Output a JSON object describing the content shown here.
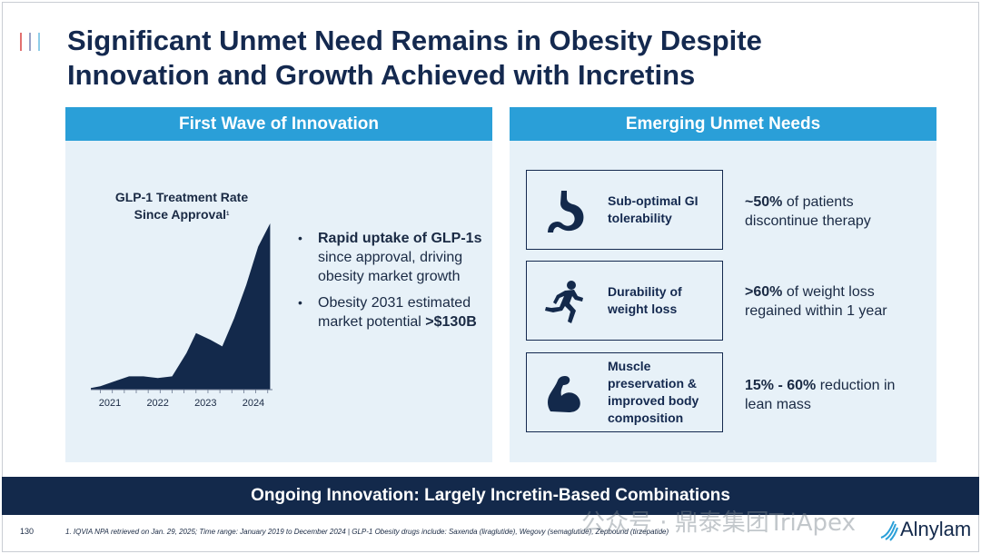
{
  "slide": {
    "title_line1": "Significant Unmet Need Remains in Obesity Despite",
    "title_line2": "Innovation and Growth Achieved with Incretins",
    "page_number": "130",
    "colors": {
      "navy": "#13294b",
      "blue": "#2a9fd8",
      "panel": "#e7f1f8"
    }
  },
  "left_panel": {
    "header": "First Wave of Innovation",
    "chart_title_line1": "GLP-1 Treatment Rate",
    "chart_title_line2": "Since Approval",
    "chart_title_sup": "1",
    "bullets": [
      {
        "bold": "Rapid uptake of GLP-1s",
        "text": " since approval, driving obesity market growth"
      },
      {
        "text": "Obesity 2031 estimated market potential ",
        "bold": ">$130B"
      }
    ]
  },
  "chart_data": {
    "type": "area",
    "title": "GLP-1 Treatment Rate Since Approval",
    "xlabel": "",
    "ylabel": "",
    "x_ticks": [
      "2021",
      "2022",
      "2023",
      "2024"
    ],
    "x": [
      2020.8,
      2021.0,
      2021.3,
      2021.6,
      2021.9,
      2022.2,
      2022.5,
      2022.8,
      2023.0,
      2023.3,
      2023.55,
      2023.8,
      2024.05,
      2024.3,
      2024.55
    ],
    "values": [
      0.01,
      0.02,
      0.05,
      0.08,
      0.08,
      0.07,
      0.08,
      0.22,
      0.34,
      0.3,
      0.26,
      0.43,
      0.63,
      0.86,
      1.0
    ],
    "xlim": [
      2020.8,
      2024.6
    ],
    "ylim": [
      0,
      1
    ],
    "grid": false,
    "legend": "none",
    "color": "#13294b"
  },
  "right_panel": {
    "header": "Emerging Unmet Needs",
    "needs": [
      {
        "icon": "stomach-icon",
        "label": "Sub-optimal GI tolerability",
        "stat_bold": "~50%",
        "stat_text": " of patients discontinue therapy"
      },
      {
        "icon": "running-person-icon",
        "label": "Durability of weight loss",
        "stat_bold": ">60%",
        "stat_text": " of weight loss regained within 1 year"
      },
      {
        "icon": "flexed-arm-icon",
        "label": "Muscle preservation & improved body composition",
        "stat_bold": "15% - 60%",
        "stat_text": " reduction in lean mass"
      }
    ]
  },
  "banner": {
    "text": "Ongoing Innovation: Largely Incretin-Based Combinations"
  },
  "footer": {
    "footnote": "1. IQVIA NPA retrieved on Jan. 29, 2025; Time range: January 2019 to December 2024 | GLP-1 Obesity drugs include: Saxenda (liraglutide), Wegovy (semaglutide), Zepbound (tirzepatide)",
    "watermark": "公众号 · 鼎泰集团TriApex",
    "logo": "Alnylam"
  }
}
